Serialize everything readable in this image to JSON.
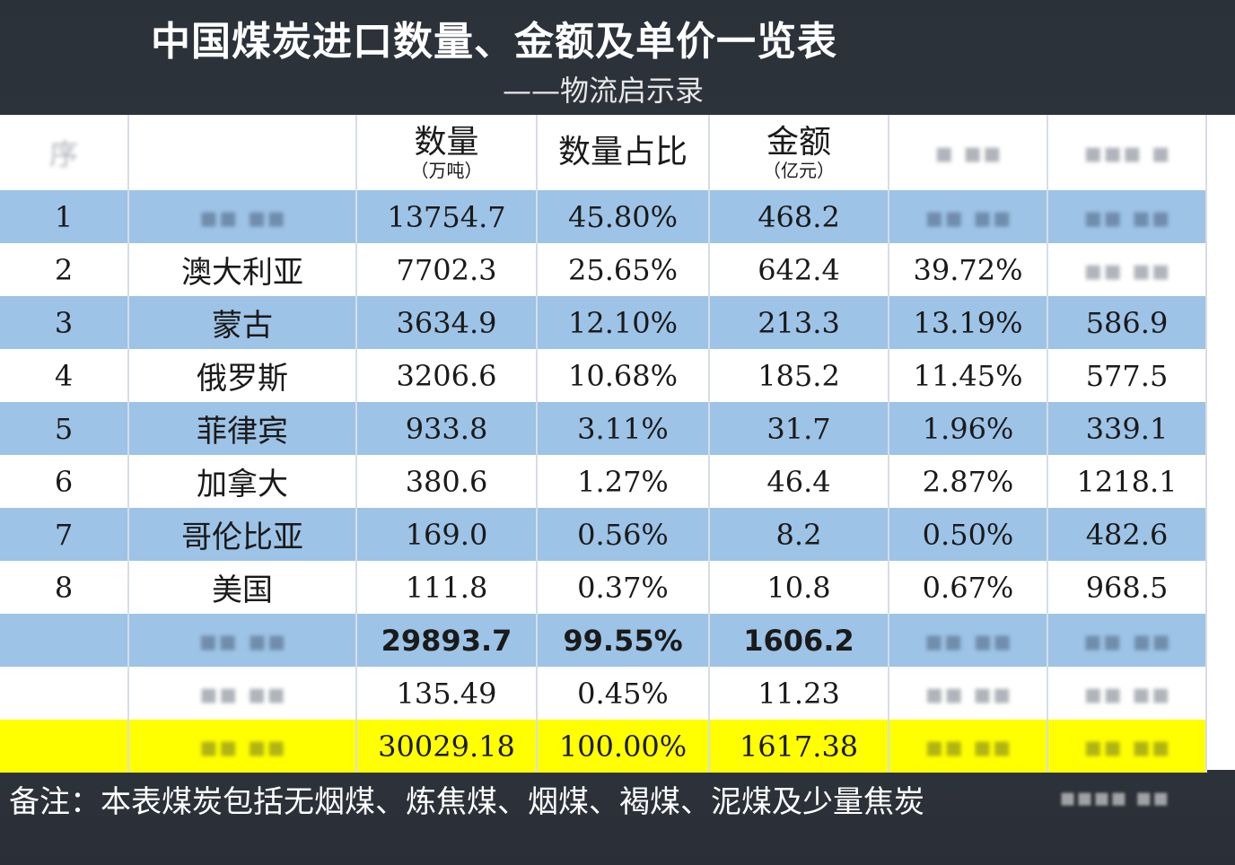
{
  "title": "中国煤炭进口数量、金额及单价一览表",
  "subtitle": "——物流启示录",
  "headers": {
    "col0": "",
    "col1": "",
    "qty_label": "数量",
    "qty_unit": "（万吨）",
    "share_label": "数量占比",
    "amt_label": "金额",
    "amt_unit": "（亿元）",
    "col5": "",
    "col6": ""
  },
  "rows": [
    {
      "rank": "1",
      "country": "",
      "qty": "13754.7",
      "share": "45.80%",
      "amount": "468.2",
      "amt_share": "",
      "price": ""
    },
    {
      "rank": "2",
      "country": "澳大利亚",
      "qty": "7702.3",
      "share": "25.65%",
      "amount": "642.4",
      "amt_share": "39.72%",
      "price": ""
    },
    {
      "rank": "3",
      "country": "蒙古",
      "qty": "3634.9",
      "share": "12.10%",
      "amount": "213.3",
      "amt_share": "13.19%",
      "price": "586.9"
    },
    {
      "rank": "4",
      "country": "俄罗斯",
      "qty": "3206.6",
      "share": "10.68%",
      "amount": "185.2",
      "amt_share": "11.45%",
      "price": "577.5"
    },
    {
      "rank": "5",
      "country": "菲律宾",
      "qty": "933.8",
      "share": "3.11%",
      "amount": "31.7",
      "amt_share": "1.96%",
      "price": "339.1"
    },
    {
      "rank": "6",
      "country": "加拿大",
      "qty": "380.6",
      "share": "1.27%",
      "amount": "46.4",
      "amt_share": "2.87%",
      "price": "1218.1"
    },
    {
      "rank": "7",
      "country": "哥伦比亚",
      "qty": "169.0",
      "share": "0.56%",
      "amount": "8.2",
      "amt_share": "0.50%",
      "price": "482.6"
    },
    {
      "rank": "8",
      "country": "美国",
      "qty": "111.8",
      "share": "0.37%",
      "amount": "10.8",
      "amt_share": "0.67%",
      "price": "968.5"
    }
  ],
  "subtotal": {
    "qty": "29893.7",
    "share": "99.55%",
    "amount": "1606.2"
  },
  "other": {
    "qty": "135.49",
    "share": "0.45%",
    "amount": "11.23"
  },
  "total": {
    "qty": "30029.18",
    "share": "100.00%",
    "amount": "1617.38"
  },
  "note": "备注：本表煤炭包括无烟煤、炼焦煤、烟煤、褐煤、泥煤及少量焦炭",
  "colors": {
    "band_blue": "#9dc3e6",
    "total_yellow": "#ffff00",
    "background": "#2b3139"
  },
  "chart_data": {
    "type": "table",
    "title": "中国煤炭进口数量、金额及单价一览表",
    "columns": [
      "",
      "",
      "数量（万吨）",
      "数量占比",
      "金额（亿元）",
      "",
      ""
    ],
    "rows": [
      [
        "1",
        "",
        13754.7,
        "45.80%",
        468.2,
        "",
        ""
      ],
      [
        "2",
        "澳大利亚",
        7702.3,
        "25.65%",
        642.4,
        "39.72%",
        ""
      ],
      [
        "3",
        "蒙古",
        3634.9,
        "12.10%",
        213.3,
        "13.19%",
        586.9
      ],
      [
        "4",
        "俄罗斯",
        3206.6,
        "10.68%",
        185.2,
        "11.45%",
        577.5
      ],
      [
        "5",
        "菲律宾",
        933.8,
        "3.11%",
        31.7,
        "1.96%",
        339.1
      ],
      [
        "6",
        "加拿大",
        380.6,
        "1.27%",
        46.4,
        "2.87%",
        1218.1
      ],
      [
        "7",
        "哥伦比亚",
        169.0,
        "0.56%",
        8.2,
        "0.50%",
        482.6
      ],
      [
        "8",
        "美国",
        111.8,
        "0.37%",
        10.8,
        "0.67%",
        968.5
      ],
      [
        "",
        "",
        29893.7,
        "99.55%",
        1606.2,
        "",
        ""
      ],
      [
        "",
        "",
        135.49,
        "0.45%",
        11.23,
        "",
        ""
      ],
      [
        "",
        "",
        30029.18,
        "100.00%",
        1617.38,
        "",
        ""
      ]
    ]
  }
}
